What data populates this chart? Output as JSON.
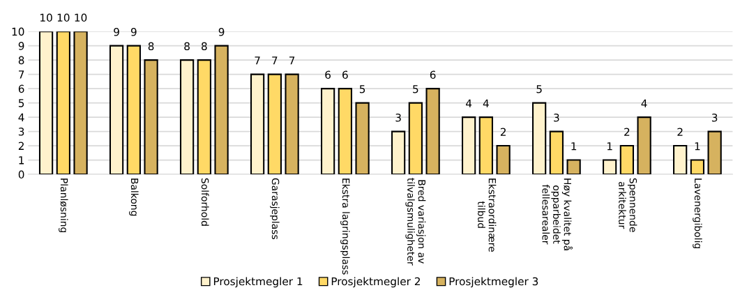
{
  "chart_data": {
    "type": "bar",
    "categories": [
      "Planløsning",
      "Balkong",
      "Solforhold",
      "Garasjeplass",
      "Ekstra lagringsplass",
      "Bred variasjon av\ntilvalgsmuligheter",
      "Ekstraordinære\ntilbud",
      "Høy kvalitet på\nopparbeidet\nfellesarealer",
      "Spennende\narkitektur",
      "Lavenergibolig"
    ],
    "series": [
      {
        "name": "Prosjektmegler 1",
        "color": "#fff2cc",
        "values": [
          10,
          9,
          8,
          7,
          6,
          3,
          4,
          5,
          1,
          2
        ]
      },
      {
        "name": "Prosjektmegler 2",
        "color": "#ffd966",
        "values": [
          10,
          9,
          8,
          7,
          6,
          5,
          4,
          3,
          2,
          1
        ]
      },
      {
        "name": "Prosjektmegler 3",
        "color": "#d6b25f",
        "values": [
          10,
          8,
          9,
          7,
          5,
          6,
          2,
          1,
          4,
          3
        ]
      }
    ],
    "ylim": [
      0,
      10
    ],
    "yticks": [
      0,
      1,
      2,
      3,
      4,
      5,
      6,
      7,
      8,
      9,
      10
    ],
    "grid": "y",
    "legend": "bottom",
    "data_labels": true
  }
}
